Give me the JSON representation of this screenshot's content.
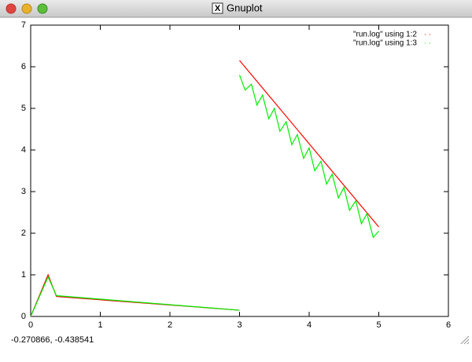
{
  "window": {
    "title": "Gnuplot",
    "status": "-0.270866, -0.438541"
  },
  "chart_data": {
    "type": "line",
    "xlim": [
      0,
      6
    ],
    "ylim": [
      0,
      7
    ],
    "xticks": [
      0,
      1,
      2,
      3,
      4,
      5,
      6
    ],
    "yticks": [
      0,
      1,
      2,
      3,
      4,
      5,
      6,
      7
    ],
    "legend": "top-right",
    "series": [
      {
        "name": "\"run.log\" using 1:2",
        "color": "#ff0000",
        "x": [
          0,
          0.25,
          0.37,
          3,
          3,
          3,
          5
        ],
        "values": [
          0,
          1,
          0.48,
          0.15,
          null,
          6.15,
          2.15
        ]
      },
      {
        "name": "\"run.log\" using 1:3",
        "color": "#00ee00",
        "x": [
          0,
          0.25,
          0.37,
          3,
          3,
          3,
          3.08,
          3.17,
          3.25,
          3.33,
          3.42,
          3.5,
          3.58,
          3.67,
          3.75,
          3.83,
          3.92,
          4,
          4.08,
          4.17,
          4.25,
          4.33,
          4.42,
          4.5,
          4.58,
          4.67,
          4.75,
          4.83,
          4.92,
          5
        ],
        "values": [
          0,
          0.95,
          0.5,
          0.15,
          null,
          5.8,
          5.44,
          5.58,
          5.08,
          5.32,
          4.75,
          5,
          4.45,
          4.68,
          4.13,
          4.37,
          3.8,
          4.05,
          3.5,
          3.73,
          3.18,
          3.42,
          2.85,
          3.1,
          2.55,
          2.78,
          2.23,
          2.47,
          1.9,
          2.05
        ]
      }
    ]
  }
}
